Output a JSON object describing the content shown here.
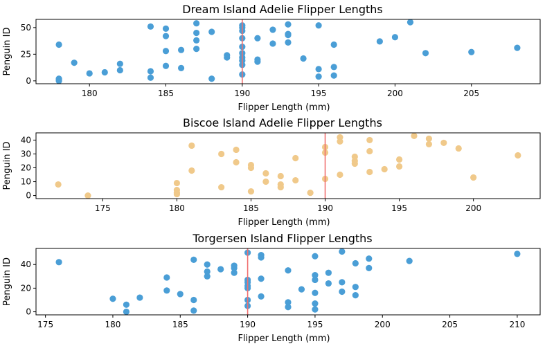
{
  "chart_data": [
    {
      "type": "scatter",
      "title": "Dream Island Adelie Flipper Lengths",
      "xlabel": "Flipper Length (mm)",
      "ylabel": "Penguin ID",
      "xlim": [
        176.5,
        209.5
      ],
      "ylim": [
        -2.7,
        57.7
      ],
      "xticks": [
        180,
        185,
        190,
        195,
        200,
        205
      ],
      "yticks": [
        0,
        25,
        50
      ],
      "color": "#4a9ed6",
      "vline": 190,
      "vline_color": "#f07070",
      "points": [
        [
          178,
          34
        ],
        [
          178,
          2
        ],
        [
          178,
          1
        ],
        [
          178,
          0
        ],
        [
          179,
          17
        ],
        [
          180,
          7
        ],
        [
          181,
          8
        ],
        [
          182,
          10
        ],
        [
          182,
          16
        ],
        [
          184,
          9
        ],
        [
          184,
          3
        ],
        [
          184,
          51
        ],
        [
          185,
          49
        ],
        [
          185,
          42
        ],
        [
          185,
          28
        ],
        [
          185,
          14
        ],
        [
          186,
          29
        ],
        [
          186,
          12
        ],
        [
          187,
          54
        ],
        [
          187,
          45
        ],
        [
          187,
          38
        ],
        [
          187,
          30
        ],
        [
          188,
          46
        ],
        [
          188,
          2
        ],
        [
          189,
          24
        ],
        [
          189,
          22
        ],
        [
          190,
          52
        ],
        [
          190,
          50
        ],
        [
          190,
          47
        ],
        [
          190,
          40
        ],
        [
          190,
          32
        ],
        [
          190,
          26
        ],
        [
          190,
          22
        ],
        [
          190,
          19
        ],
        [
          190,
          15
        ],
        [
          190,
          6
        ],
        [
          191,
          40
        ],
        [
          191,
          20
        ],
        [
          191,
          18
        ],
        [
          192,
          48
        ],
        [
          192,
          35
        ],
        [
          193,
          53
        ],
        [
          193,
          44
        ],
        [
          193,
          43
        ],
        [
          193,
          36
        ],
        [
          194,
          21
        ],
        [
          195,
          52
        ],
        [
          195,
          11
        ],
        [
          195,
          4
        ],
        [
          196,
          34
        ],
        [
          196,
          13
        ],
        [
          196,
          5
        ],
        [
          199,
          37
        ],
        [
          200,
          41
        ],
        [
          201,
          55
        ],
        [
          202,
          26
        ],
        [
          205,
          27
        ],
        [
          208,
          31
        ]
      ]
    },
    {
      "type": "scatter",
      "title": "Biscoe Island Adelie Flipper Lengths",
      "xlabel": "Flipper Length (mm)",
      "ylabel": "Penguin ID",
      "xlim": [
        170.5,
        204.5
      ],
      "ylim": [
        -2.2,
        45.2
      ],
      "xticks": [
        175,
        180,
        185,
        190,
        195,
        200
      ],
      "yticks": [
        0,
        10,
        20,
        30,
        40
      ],
      "color": "#f0c98a",
      "vline": 190,
      "vline_color": "#f07070",
      "points": [
        [
          172,
          8
        ],
        [
          174,
          0
        ],
        [
          180,
          9
        ],
        [
          180,
          4
        ],
        [
          180,
          2
        ],
        [
          180,
          1
        ],
        [
          181,
          36
        ],
        [
          181,
          18
        ],
        [
          183,
          30
        ],
        [
          183,
          6
        ],
        [
          184,
          33
        ],
        [
          184,
          24
        ],
        [
          185,
          22
        ],
        [
          185,
          20
        ],
        [
          185,
          3
        ],
        [
          186,
          16
        ],
        [
          186,
          10
        ],
        [
          187,
          14
        ],
        [
          187,
          8
        ],
        [
          187,
          6
        ],
        [
          188,
          27
        ],
        [
          188,
          11
        ],
        [
          189,
          2
        ],
        [
          190,
          35
        ],
        [
          190,
          31
        ],
        [
          190,
          12
        ],
        [
          191,
          42
        ],
        [
          191,
          39
        ],
        [
          191,
          15
        ],
        [
          192,
          28
        ],
        [
          192,
          25
        ],
        [
          192,
          23
        ],
        [
          193,
          40
        ],
        [
          193,
          32
        ],
        [
          193,
          17
        ],
        [
          194,
          19
        ],
        [
          195,
          26
        ],
        [
          195,
          21
        ],
        [
          196,
          43
        ],
        [
          197,
          41
        ],
        [
          197,
          37
        ],
        [
          198,
          38
        ],
        [
          199,
          34
        ],
        [
          200,
          13
        ],
        [
          203,
          29
        ]
      ]
    },
    {
      "type": "scatter",
      "title": "Torgersen Island Flipper Lengths",
      "xlabel": "Flipper Length (mm)",
      "ylabel": "Penguin ID",
      "xlim": [
        174.3,
        211.7
      ],
      "ylim": [
        -2.6,
        53.6
      ],
      "xticks": [
        175,
        180,
        185,
        190,
        195,
        200,
        205,
        210
      ],
      "yticks": [
        0,
        20,
        40
      ],
      "color": "#4a9ed6",
      "vline": 190,
      "vline_color": "#f07070",
      "points": [
        [
          176,
          42
        ],
        [
          180,
          11
        ],
        [
          181,
          6
        ],
        [
          181,
          0
        ],
        [
          182,
          12
        ],
        [
          184,
          29
        ],
        [
          184,
          18
        ],
        [
          185,
          15
        ],
        [
          186,
          44
        ],
        [
          186,
          10
        ],
        [
          186,
          1
        ],
        [
          187,
          40
        ],
        [
          187,
          34
        ],
        [
          187,
          30
        ],
        [
          188,
          36
        ],
        [
          189,
          39
        ],
        [
          189,
          37
        ],
        [
          189,
          33
        ],
        [
          190,
          50
        ],
        [
          190,
          27
        ],
        [
          190,
          25
        ],
        [
          190,
          22
        ],
        [
          190,
          20
        ],
        [
          190,
          10
        ],
        [
          190,
          5
        ],
        [
          191,
          48
        ],
        [
          191,
          46
        ],
        [
          191,
          28
        ],
        [
          191,
          13
        ],
        [
          193,
          35
        ],
        [
          193,
          8
        ],
        [
          193,
          4
        ],
        [
          194,
          19
        ],
        [
          195,
          47
        ],
        [
          195,
          31
        ],
        [
          195,
          27
        ],
        [
          195,
          16
        ],
        [
          195,
          7
        ],
        [
          195,
          2
        ],
        [
          196,
          33
        ],
        [
          196,
          24
        ],
        [
          197,
          51
        ],
        [
          197,
          25
        ],
        [
          197,
          17
        ],
        [
          198,
          41
        ],
        [
          198,
          21
        ],
        [
          198,
          14
        ],
        [
          199,
          45
        ],
        [
          199,
          37
        ],
        [
          202,
          43
        ],
        [
          210,
          49
        ]
      ]
    }
  ]
}
